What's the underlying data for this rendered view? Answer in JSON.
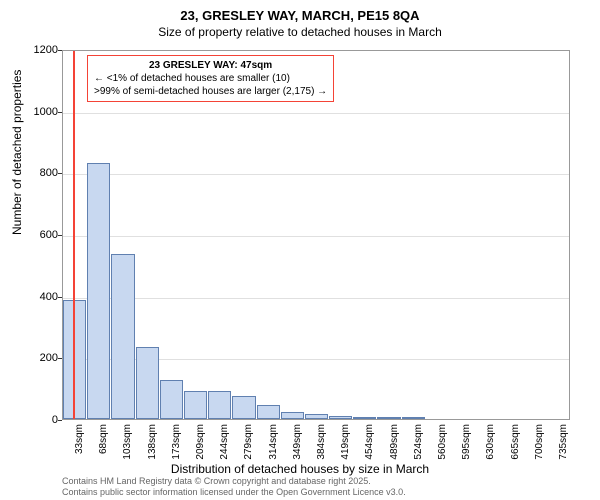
{
  "title": "23, GRESLEY WAY, MARCH, PE15 8QA",
  "subtitle": "Size of property relative to detached houses in March",
  "ylabel": "Number of detached properties",
  "xlabel": "Distribution of detached houses by size in March",
  "chart": {
    "type": "histogram",
    "background_color": "#ffffff",
    "grid_color": "#e0e0e0",
    "bar_fill": "#c8d8f0",
    "bar_border": "#6080b0",
    "highlight_color": "#f44336",
    "ylim": [
      0,
      1200
    ],
    "yticks": [
      0,
      200,
      400,
      600,
      800,
      1000,
      1200
    ],
    "xtick_labels": [
      "33sqm",
      "68sqm",
      "103sqm",
      "138sqm",
      "173sqm",
      "209sqm",
      "244sqm",
      "279sqm",
      "314sqm",
      "349sqm",
      "384sqm",
      "419sqm",
      "454sqm",
      "489sqm",
      "524sqm",
      "560sqm",
      "595sqm",
      "630sqm",
      "665sqm",
      "700sqm",
      "735sqm"
    ],
    "bars": [
      385,
      830,
      535,
      235,
      125,
      90,
      92,
      75,
      44,
      22,
      15,
      10,
      5,
      2,
      2,
      0,
      0,
      0,
      0,
      0,
      0
    ],
    "highlight_position": 0.42,
    "bar_count": 21,
    "title_fontsize": 13,
    "label_fontsize": 12,
    "tick_fontsize": 10
  },
  "legend": {
    "title": "23 GRESLEY WAY: 47sqm",
    "line1": "← <1% of detached houses are smaller (10)",
    "line2": ">99% of semi-detached houses are larger (2,175) →"
  },
  "footer": {
    "line1": "Contains HM Land Registry data © Crown copyright and database right 2025.",
    "line2": "Contains public sector information licensed under the Open Government Licence v3.0."
  }
}
